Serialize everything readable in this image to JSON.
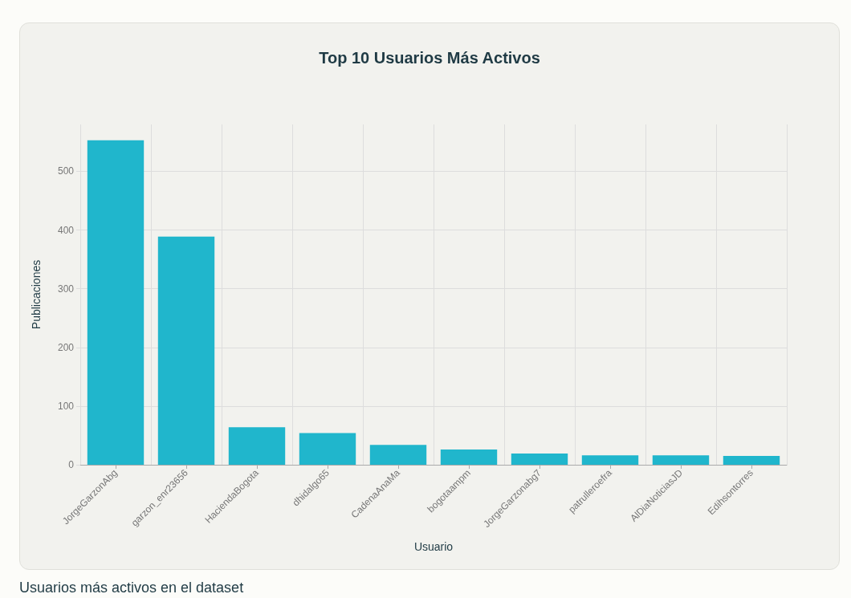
{
  "chart_data": {
    "type": "bar",
    "title": "Top 10 Usuarios Más Activos",
    "xlabel": "Usuario",
    "ylabel": "Publicaciones",
    "categories": [
      "JorgeGarzonAbg",
      "garzon_enr23656",
      "HaciendaBogota",
      "dhidalgo65",
      "CadenaAnaMa",
      "bogotaampm",
      "JorgeGarzonabg7",
      "patrulleroefra",
      "AlDiaNoticiasJD",
      "Edihsontorres"
    ],
    "values": [
      553,
      389,
      64,
      54,
      34,
      26,
      19,
      16,
      16,
      15
    ],
    "color": "#20b6cc",
    "ylim": [
      0,
      580
    ],
    "yticks": [
      0,
      100,
      200,
      300,
      400,
      500
    ],
    "grid": true,
    "annotations": [
      "Usuarios más activos en el dataset"
    ]
  }
}
